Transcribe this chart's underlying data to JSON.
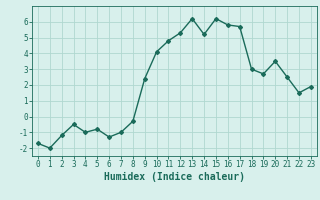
{
  "x": [
    0,
    1,
    2,
    3,
    4,
    5,
    6,
    7,
    8,
    9,
    10,
    11,
    12,
    13,
    14,
    15,
    16,
    17,
    18,
    19,
    20,
    21,
    22,
    23
  ],
  "y": [
    -1.7,
    -2.0,
    -1.2,
    -0.5,
    -1.0,
    -0.8,
    -1.3,
    -1.0,
    -0.3,
    2.4,
    4.1,
    4.8,
    5.3,
    6.2,
    5.2,
    6.2,
    5.8,
    5.7,
    3.0,
    2.7,
    3.5,
    2.5,
    1.5,
    1.9
  ],
  "line_color": "#1a6b5a",
  "marker": "D",
  "marker_size": 2,
  "bg_color": "#d8f0ec",
  "grid_color": "#b0d8d0",
  "xlabel": "Humidex (Indice chaleur)",
  "xlim": [
    -0.5,
    23.5
  ],
  "ylim": [
    -2.5,
    7.0
  ],
  "yticks": [
    -2,
    -1,
    0,
    1,
    2,
    3,
    4,
    5,
    6
  ],
  "xticks": [
    0,
    1,
    2,
    3,
    4,
    5,
    6,
    7,
    8,
    9,
    10,
    11,
    12,
    13,
    14,
    15,
    16,
    17,
    18,
    19,
    20,
    21,
    22,
    23
  ],
  "tick_color": "#1a6b5a",
  "tick_labelsize": 5.5,
  "xlabel_fontsize": 7,
  "linewidth": 1.0
}
